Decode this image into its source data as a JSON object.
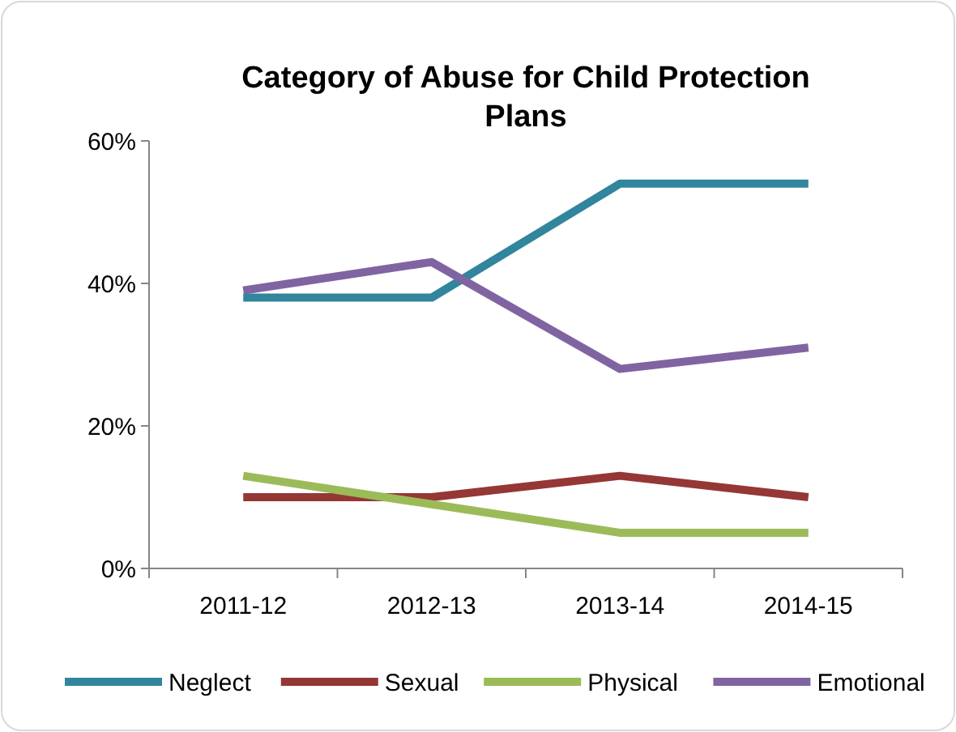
{
  "chart_data": {
    "type": "line",
    "title": "Category of Abuse for Child Protection Plans",
    "categories": [
      "2011-12",
      "2012-13",
      "2013-14",
      "2014-15"
    ],
    "series": [
      {
        "name": "Neglect",
        "color": "#31859c",
        "values": [
          38,
          38,
          54,
          54
        ]
      },
      {
        "name": "Sexual",
        "color": "#953735",
        "values": [
          10,
          10,
          13,
          10
        ]
      },
      {
        "name": "Physical",
        "color": "#9bbb59",
        "values": [
          13,
          9,
          5,
          5
        ]
      },
      {
        "name": "Emotional",
        "color": "#8064a2",
        "values": [
          39,
          43,
          28,
          31
        ]
      }
    ],
    "ylim": [
      0,
      60
    ],
    "yticks": [
      {
        "value": 0,
        "label": "0%"
      },
      {
        "value": 20,
        "label": "20%"
      },
      {
        "value": 40,
        "label": "40%"
      },
      {
        "value": 60,
        "label": "60%"
      }
    ],
    "grid": false,
    "legend": "bottom",
    "marker": "none",
    "line_style": "solid"
  }
}
